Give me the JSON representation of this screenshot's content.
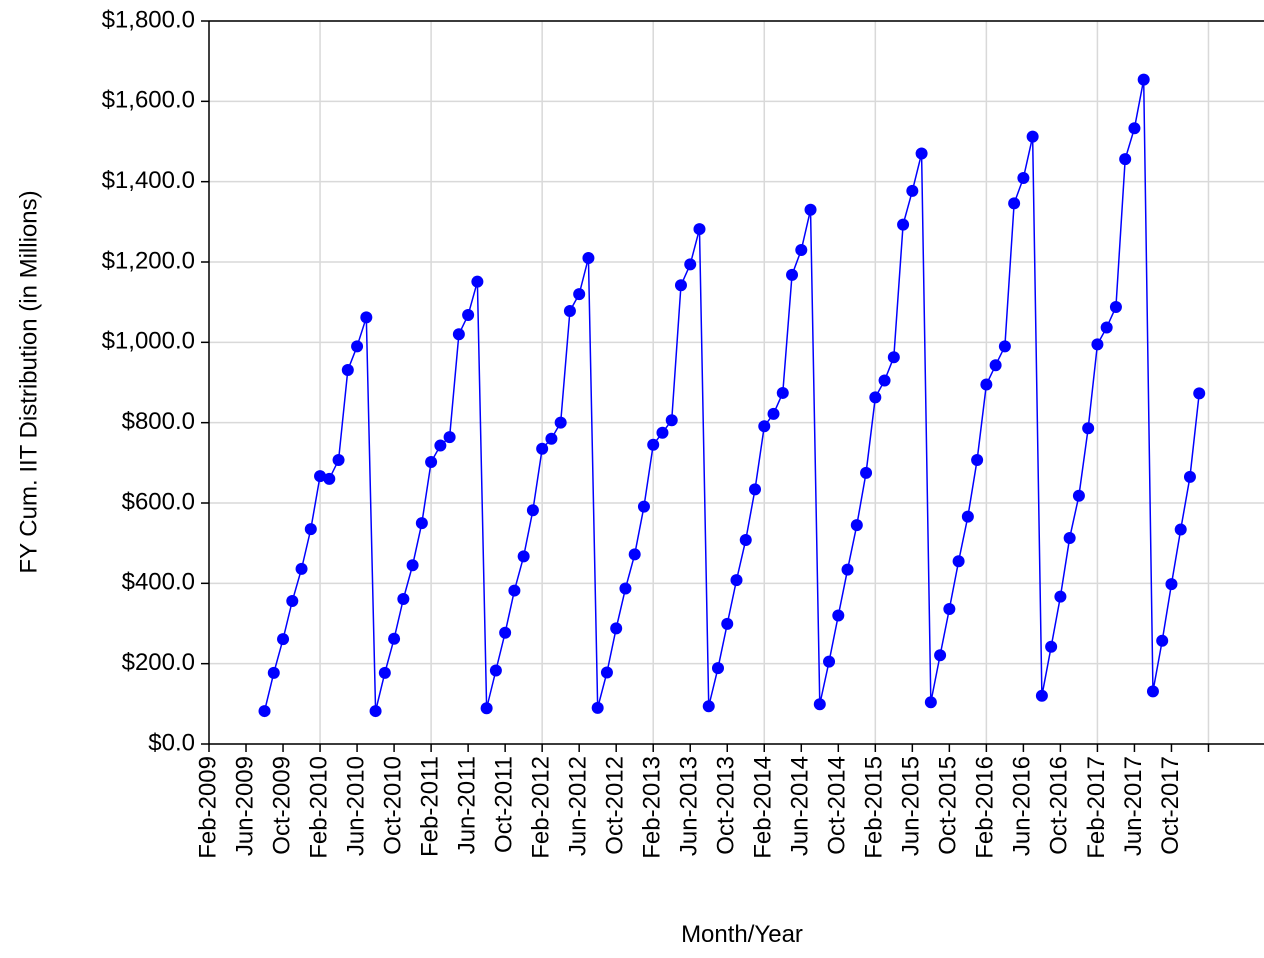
{
  "chart_data": {
    "type": "line",
    "y_label": "FY Cum. IIT Distribution (in Millions)",
    "x_label": "Month/Year",
    "x": [
      "Aug-2009",
      "Sep-2009",
      "Oct-2009",
      "Nov-2009",
      "Dec-2009",
      "Jan-2010",
      "Feb-2010",
      "Mar-2010",
      "Apr-2010",
      "May-2010",
      "Jun-2010",
      "Jul-2010",
      "Aug-2010",
      "Sep-2010",
      "Oct-2010",
      "Nov-2010",
      "Dec-2010",
      "Jan-2011",
      "Feb-2011",
      "Mar-2011",
      "Apr-2011",
      "May-2011",
      "Jun-2011",
      "Jul-2011",
      "Aug-2011",
      "Sep-2011",
      "Oct-2011",
      "Nov-2011",
      "Dec-2011",
      "Jan-2012",
      "Feb-2012",
      "Mar-2012",
      "Apr-2012",
      "May-2012",
      "Jun-2012",
      "Jul-2012",
      "Aug-2012",
      "Sep-2012",
      "Oct-2012",
      "Nov-2012",
      "Dec-2012",
      "Jan-2013",
      "Feb-2013",
      "Mar-2013",
      "Apr-2013",
      "May-2013",
      "Jun-2013",
      "Jul-2013",
      "Aug-2013",
      "Sep-2013",
      "Oct-2013",
      "Nov-2013",
      "Dec-2013",
      "Jan-2014",
      "Feb-2014",
      "Mar-2014",
      "Apr-2014",
      "May-2014",
      "Jun-2014",
      "Jul-2014",
      "Aug-2014",
      "Sep-2014",
      "Oct-2014",
      "Nov-2014",
      "Dec-2014",
      "Jan-2015",
      "Feb-2015",
      "Mar-2015",
      "Apr-2015",
      "May-2015",
      "Jun-2015",
      "Jul-2015",
      "Aug-2015",
      "Sep-2015",
      "Oct-2015",
      "Nov-2015",
      "Dec-2015",
      "Jan-2016",
      "Feb-2016",
      "Mar-2016",
      "Apr-2016",
      "May-2016",
      "Jun-2016",
      "Jul-2016",
      "Aug-2016",
      "Sep-2016",
      "Oct-2016",
      "Nov-2016",
      "Dec-2016",
      "Jan-2017",
      "Feb-2017",
      "Mar-2017",
      "Apr-2017",
      "May-2017",
      "Jun-2017",
      "Jul-2017",
      "Aug-2017",
      "Sep-2017",
      "Oct-2017",
      "Nov-2017",
      "Dec-2017",
      "Jan-2018"
    ],
    "series": [
      {
        "color": "#0000ff",
        "values": [
          82,
          177,
          261,
          356,
          436,
          535,
          667,
          660,
          707,
          931,
          990,
          1062,
          82,
          177,
          262,
          361,
          445,
          550,
          702,
          743,
          764,
          1020,
          1068,
          1151,
          89,
          183,
          277,
          382,
          467,
          582,
          735,
          760,
          800,
          1078,
          1120,
          1210,
          90,
          178,
          288,
          387,
          472,
          591,
          745,
          775,
          806,
          1142,
          1194,
          1282,
          94,
          189,
          299,
          408,
          508,
          634,
          791,
          822,
          874,
          1168,
          1230,
          1330,
          99,
          205,
          320,
          434,
          545,
          675,
          863,
          905,
          963,
          1293,
          1377,
          1470,
          104,
          221,
          336,
          455,
          566,
          707,
          895,
          943,
          990,
          1346,
          1409,
          1512,
          120,
          242,
          367,
          513,
          618,
          786,
          995,
          1037,
          1088,
          1456,
          1533,
          1654,
          131,
          257,
          398,
          534,
          665,
          873
        ]
      }
    ],
    "xlim": [
      "Feb-2009",
      "Aug-2018"
    ],
    "xticks": [
      "Feb-2009",
      "Jun-2009",
      "Oct-2009",
      "Feb-2010",
      "Jun-2010",
      "Oct-2010",
      "Feb-2011",
      "Jun-2011",
      "Oct-2011",
      "Feb-2012",
      "Jun-2012",
      "Oct-2012",
      "Feb-2013",
      "Jun-2013",
      "Oct-2013",
      "Feb-2014",
      "Jun-2014",
      "Oct-2014",
      "Feb-2015",
      "Jun-2015",
      "Oct-2015",
      "Feb-2016",
      "Jun-2016",
      "Oct-2016",
      "Feb-2017",
      "Jun-2017",
      "Oct-2017",
      {
        "value": "Feb-2018",
        "label": null
      }
    ],
    "ylim": [
      0,
      1800
    ],
    "yticks": [
      {
        "value": 0,
        "label": "$0.0"
      },
      {
        "value": 200,
        "label": "$200.0"
      },
      {
        "value": 400,
        "label": "$400.0"
      },
      {
        "value": 600,
        "label": "$600.0"
      },
      {
        "value": 800,
        "label": "$800.0"
      },
      {
        "value": 1000,
        "label": "$1,000.0"
      },
      {
        "value": 1200,
        "label": "$1,200.0"
      },
      {
        "value": 1400,
        "label": "$1,400.0"
      },
      {
        "value": 1600,
        "label": "$1,600.0"
      },
      {
        "value": 1800,
        "label": "$1,800.0"
      }
    ],
    "grid": true
  }
}
